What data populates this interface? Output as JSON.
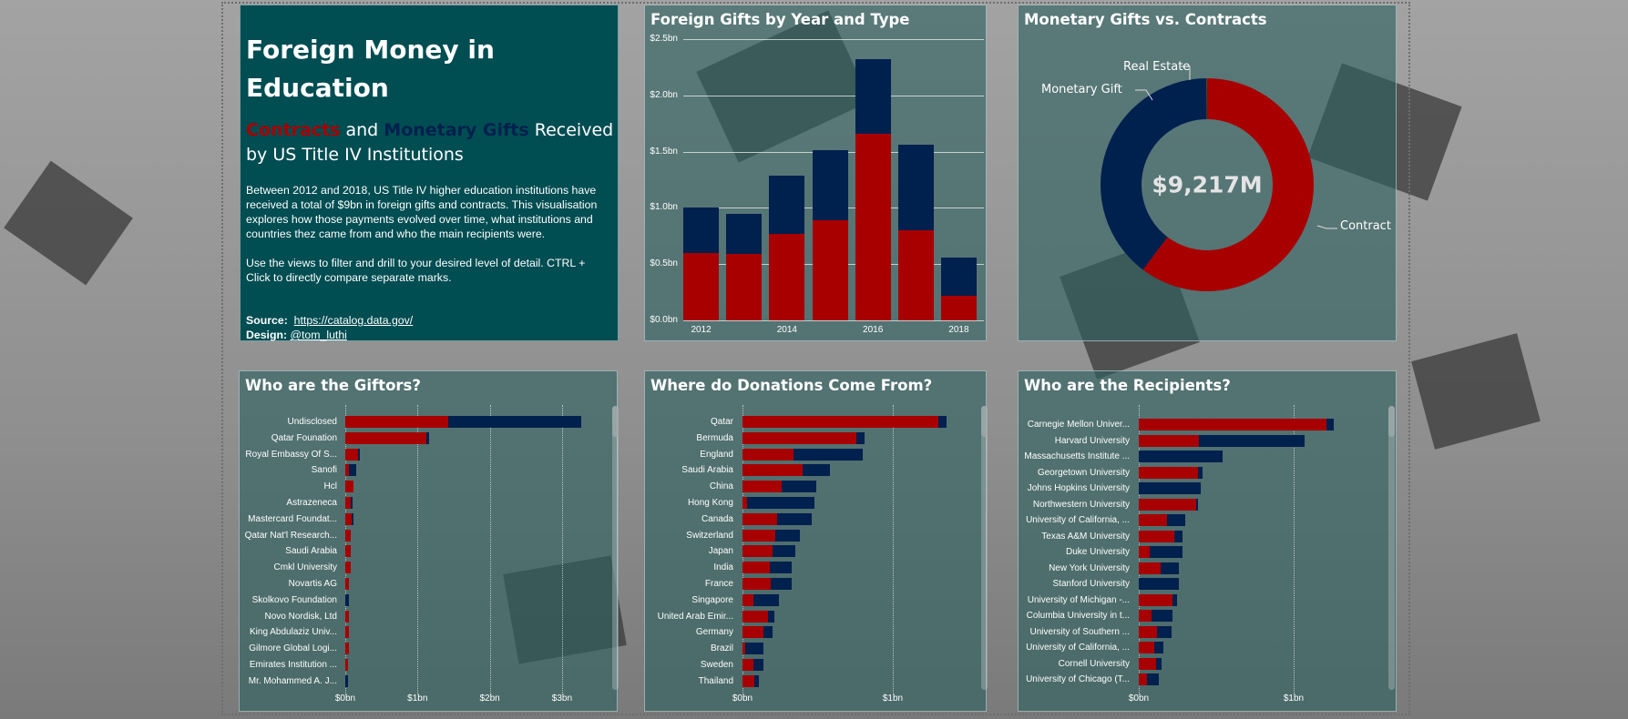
{
  "colors": {
    "contract": "#a80000",
    "monetary_gift": "#00204e",
    "real_estate": "#1a6a2a",
    "intro_bg": "#004d52"
  },
  "intro": {
    "title": "Foreign Money in Education",
    "subtitle_contracts": "Contracts",
    "subtitle_and": " and ",
    "subtitle_gifts": "Monetary Gifts",
    "subtitle_rest": " Received by US Title IV Institutions",
    "para1": "Between 2012 and 2018, US Title IV higher education institutions have received a total of $9bn in foreign gifts and contracts. This visualisation explores how those payments evolved over time, what institutions and countries thez came from and who the main recipients were.",
    "para2": "Use the views to filter and drill to your desired level of detail.  CTRL + Click to directly compare separate marks.",
    "source_label": "Source:",
    "source_link": "https://catalog.data.gov/",
    "design_label": "Design:",
    "design_link": "@tom_luthi"
  },
  "chart_data": [
    {
      "type": "bar",
      "stacked": true,
      "title": "Foreign Gifts by Year and Type",
      "categories": [
        "2012",
        "2013",
        "2014",
        "2015",
        "2016",
        "2017",
        "2018"
      ],
      "x_tick_labels": [
        "2012",
        "",
        "2014",
        "",
        "2016",
        "",
        "2018"
      ],
      "y_ticks": [
        "$0.0bn",
        "$0.5bn",
        "$1.0bn",
        "$1.5bn",
        "$2.0bn",
        "$2.5bn"
      ],
      "ylim": [
        0,
        2.5
      ],
      "grid": true,
      "series": [
        {
          "type": "Contract",
          "values": [
            0.6,
            0.59,
            0.77,
            0.89,
            1.66,
            0.8,
            0.22
          ]
        },
        {
          "type": "Monetary Gift",
          "values": [
            0.4,
            0.36,
            0.52,
            0.62,
            0.66,
            0.76,
            0.34
          ]
        }
      ]
    },
    {
      "type": "pie",
      "donut": true,
      "title": "Monetary Gifts vs. Contracts",
      "center_label": "$9,217M",
      "slices": [
        {
          "name": "Contract",
          "share": 0.603
        },
        {
          "name": "Monetary Gift",
          "share": 0.396
        },
        {
          "name": "Real Estate",
          "share": 0.001
        }
      ]
    },
    {
      "type": "bar",
      "orientation": "horizontal",
      "stacked": true,
      "title": "Who are the Giftors?",
      "x_ticks": [
        "$0bn",
        "$1bn",
        "$2bn",
        "$3bn"
      ],
      "xlim": [
        0,
        3.3
      ],
      "categories": [
        "Undisclosed",
        "Qatar Founation",
        "Royal Embassy Of S...",
        "Sanofi",
        "Hcl",
        "Astrazeneca",
        "Mastercard Foundat...",
        "Qatar Nat'l Research...",
        "Saudi Arabia",
        "Cmkl University",
        "Novartis AG",
        "Skolkovo Foundation",
        "Novo Nordisk, Ltd",
        "King Abdulaziz Univ...",
        "Gilmore Global Logi...",
        "Emirates Institution ...",
        "Mr. Mohammed A. J..."
      ],
      "series": [
        {
          "type": "Contract",
          "values": [
            1.43,
            1.12,
            0.18,
            0.05,
            0.11,
            0.07,
            0.09,
            0.08,
            0.07,
            0.07,
            0.055,
            0,
            0.05,
            0.05,
            0.046,
            0.042,
            0
          ]
        },
        {
          "type": "Monetary Gift",
          "values": [
            1.84,
            0.04,
            0.01,
            0.105,
            0,
            0.035,
            0.005,
            0,
            0,
            0,
            0,
            0.05,
            0,
            0,
            0,
            0,
            0.04
          ]
        }
      ]
    },
    {
      "type": "bar",
      "orientation": "horizontal",
      "stacked": true,
      "title": "Where do Donations Come From?",
      "x_ticks": [
        "$0bn",
        "$1bn"
      ],
      "xlim": [
        0,
        1.4
      ],
      "categories": [
        "Qatar",
        "Bermuda",
        "England",
        "Saudi Arabia",
        "China",
        "Hong Kong",
        "Canada",
        "Switzerland",
        "Japan",
        "India",
        "France",
        "Singapore",
        "United Arab Emir...",
        "Germany",
        "Brazil",
        "Sweden",
        "Thailand"
      ],
      "series": [
        {
          "type": "Contract",
          "values": [
            1.3,
            0.76,
            0.34,
            0.4,
            0.26,
            0.03,
            0.23,
            0.22,
            0.2,
            0.18,
            0.19,
            0.07,
            0.17,
            0.14,
            0.02,
            0.07,
            0.08
          ]
        },
        {
          "type": "Monetary Gift",
          "values": [
            0.06,
            0.05,
            0.46,
            0.18,
            0.23,
            0.45,
            0.23,
            0.16,
            0.15,
            0.15,
            0.14,
            0.17,
            0.04,
            0.06,
            0.12,
            0.07,
            0.03
          ]
        }
      ]
    },
    {
      "type": "bar",
      "orientation": "horizontal",
      "stacked": true,
      "title": "Who are the Recipients?",
      "x_ticks": [
        "$0bn",
        "$1bn"
      ],
      "xlim": [
        0,
        1.3
      ],
      "categories": [
        "Carnegie Mellon Univer...",
        "Harvard University",
        "Massachusetts Institute ...",
        "Georgetown University",
        "Johns Hopkins University",
        "Northwestern University",
        "University of California, ...",
        "Texas A&M University",
        "Duke University",
        "New York University",
        "Stanford University",
        "University of Michigan -...",
        "Columbia University in t...",
        "University of Southern ...",
        "University of California, ...",
        "Cornell University",
        "University of Chicago (T..."
      ],
      "series": [
        {
          "type": "Contract",
          "values": [
            1.21,
            0.39,
            0,
            0.38,
            0,
            0.37,
            0.18,
            0.23,
            0.07,
            0.14,
            0,
            0.22,
            0.08,
            0.12,
            0.1,
            0.11,
            0.05
          ]
        },
        {
          "type": "Monetary Gift",
          "values": [
            0.05,
            0.68,
            0.54,
            0.03,
            0.4,
            0.01,
            0.12,
            0.05,
            0.21,
            0.12,
            0.26,
            0.03,
            0.14,
            0.09,
            0.06,
            0.04,
            0.08
          ]
        }
      ]
    }
  ]
}
